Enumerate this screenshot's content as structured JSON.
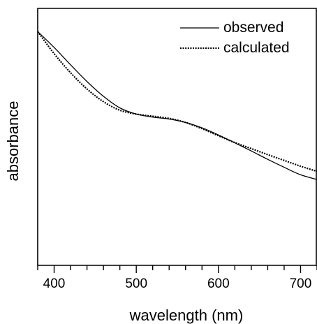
{
  "chart_data": {
    "type": "line",
    "xlabel": "wavelength (nm)",
    "ylabel": "absorbance",
    "xlim": [
      380,
      720
    ],
    "ylim": [
      0,
      1
    ],
    "xticks_major": [
      400,
      500,
      600,
      700
    ],
    "xtick_labels": [
      "400",
      "500",
      "600",
      "700"
    ],
    "xticks_minor_step": 20,
    "yticks": [],
    "grid": false,
    "legend_position": "top-right",
    "series": [
      {
        "name": "observed",
        "style": "solid",
        "color": "#000000",
        "x": [
          380,
          400,
          420,
          440,
          460,
          480,
          500,
          520,
          540,
          560,
          580,
          600,
          620,
          640,
          660,
          680,
          700,
          720
        ],
        "y": [
          0.97,
          0.896,
          0.815,
          0.737,
          0.668,
          0.614,
          0.585,
          0.571,
          0.562,
          0.546,
          0.521,
          0.488,
          0.451,
          0.413,
          0.374,
          0.337,
          0.302,
          0.28
        ]
      },
      {
        "name": "calculated",
        "style": "dotted",
        "color": "#000000",
        "x": [
          380,
          400,
          420,
          440,
          460,
          480,
          500,
          520,
          540,
          560,
          580,
          600,
          620,
          640,
          660,
          680,
          700,
          720
        ],
        "y": [
          0.97,
          0.867,
          0.778,
          0.702,
          0.643,
          0.603,
          0.585,
          0.575,
          0.565,
          0.546,
          0.517,
          0.484,
          0.452,
          0.424,
          0.396,
          0.369,
          0.342,
          0.318
        ]
      }
    ]
  }
}
